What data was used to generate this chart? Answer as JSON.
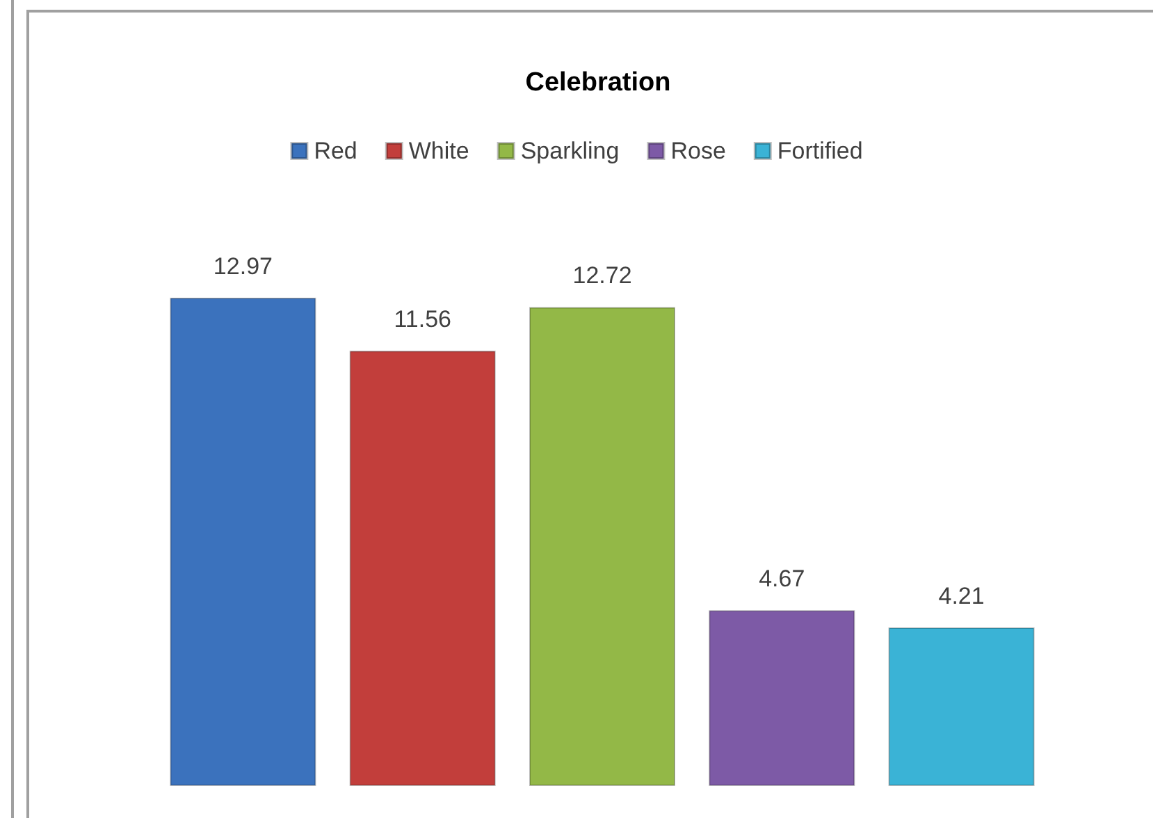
{
  "chart_data": {
    "type": "bar",
    "title": "Celebration",
    "categories": [
      null
    ],
    "series": [
      {
        "name": "Red",
        "color": "#3b72bd",
        "values": [
          12.97
        ]
      },
      {
        "name": "White",
        "color": "#c23e3b",
        "values": [
          11.56
        ]
      },
      {
        "name": "Sparkling",
        "color": "#93b847",
        "values": [
          12.72
        ]
      },
      {
        "name": "Rose",
        "color": "#7d5aa6",
        "values": [
          4.67
        ]
      },
      {
        "name": "Fortified",
        "color": "#3ab3d6",
        "values": [
          4.21
        ]
      }
    ],
    "data_labels": true,
    "legend": "top"
  }
}
